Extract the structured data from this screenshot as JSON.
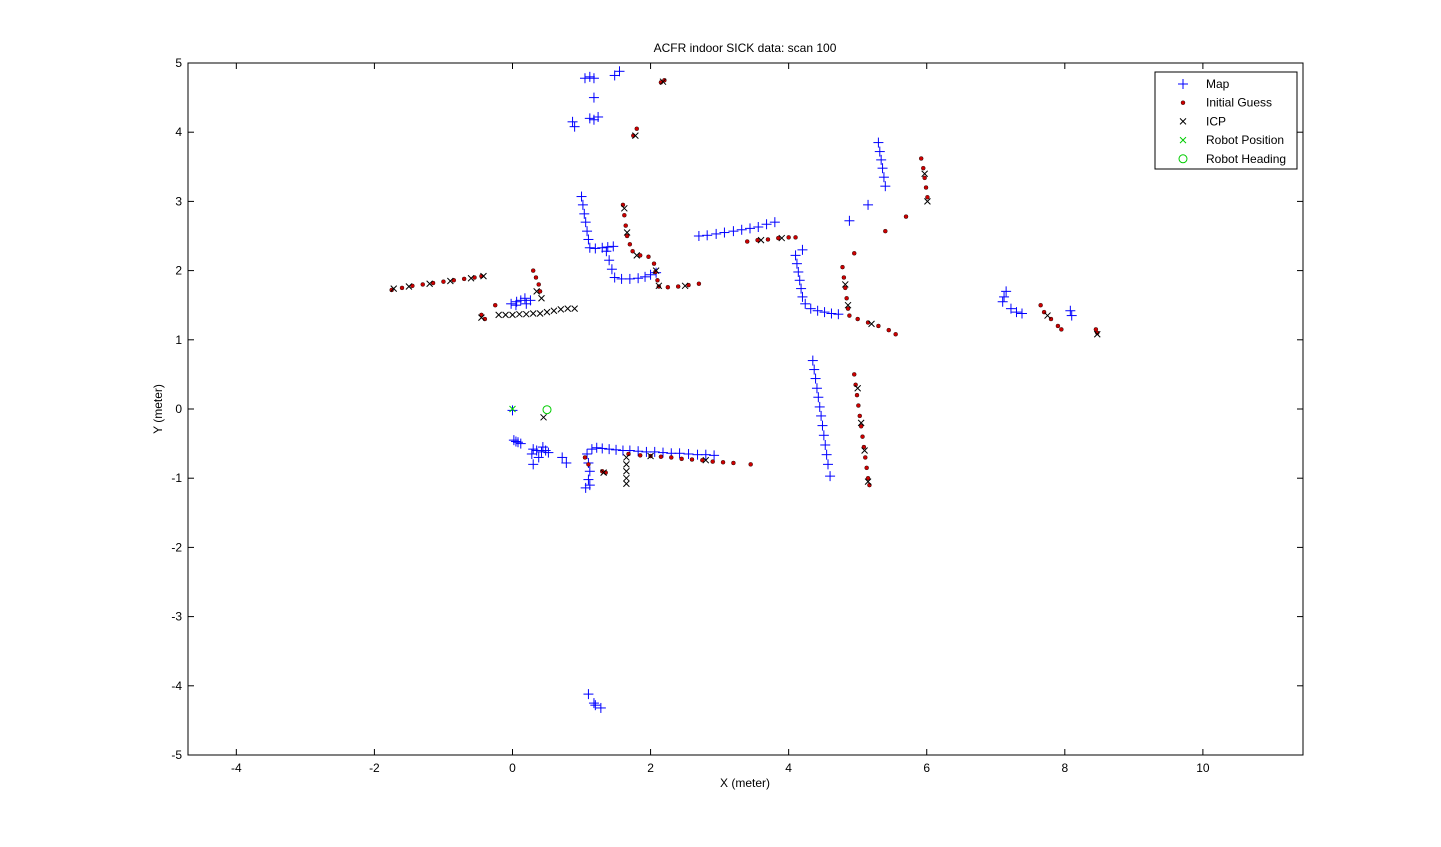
{
  "chart_data": {
    "type": "scatter",
    "title": "ACFR indoor SICK data: scan 100",
    "xlabel": "X (meter)",
    "ylabel": "Y (meter)",
    "xlim": [
      -4.7,
      11.45
    ],
    "ylim": [
      -5,
      5
    ],
    "xticks": [
      -4,
      -2,
      0,
      2,
      4,
      6,
      8,
      10
    ],
    "yticks": [
      -5,
      -4,
      -3,
      -2,
      -1,
      0,
      1,
      2,
      3,
      4,
      5
    ],
    "grid": false,
    "legend_position": "top-right",
    "series": [
      {
        "name": "Map",
        "marker": "plus",
        "color": "#0000ff",
        "points": [
          [
            1.05,
            4.78
          ],
          [
            1.12,
            4.8
          ],
          [
            1.18,
            4.78
          ],
          [
            1.48,
            4.82
          ],
          [
            1.55,
            4.88
          ],
          [
            1.18,
            4.5
          ],
          [
            0.87,
            4.15
          ],
          [
            0.9,
            4.08
          ],
          [
            1.12,
            4.2
          ],
          [
            1.18,
            4.18
          ],
          [
            1.24,
            4.22
          ],
          [
            1.0,
            3.07
          ],
          [
            1.02,
            2.95
          ],
          [
            1.04,
            2.82
          ],
          [
            1.06,
            2.7
          ],
          [
            1.08,
            2.57
          ],
          [
            1.1,
            2.45
          ],
          [
            1.12,
            2.33
          ],
          [
            1.2,
            2.32
          ],
          [
            1.3,
            2.33
          ],
          [
            1.38,
            2.34
          ],
          [
            1.46,
            2.35
          ],
          [
            1.36,
            2.28
          ],
          [
            1.4,
            2.15
          ],
          [
            1.44,
            2.02
          ],
          [
            1.48,
            1.9
          ],
          [
            1.58,
            1.88
          ],
          [
            1.7,
            1.88
          ],
          [
            1.82,
            1.89
          ],
          [
            1.92,
            1.91
          ],
          [
            2.0,
            1.94
          ],
          [
            2.08,
            1.97
          ],
          [
            2.7,
            2.5
          ],
          [
            2.82,
            2.51
          ],
          [
            2.95,
            2.53
          ],
          [
            3.07,
            2.55
          ],
          [
            3.2,
            2.57
          ],
          [
            3.32,
            2.59
          ],
          [
            3.44,
            2.61
          ],
          [
            3.56,
            2.63
          ],
          [
            3.68,
            2.67
          ],
          [
            3.8,
            2.7
          ],
          [
            4.1,
            2.22
          ],
          [
            4.12,
            2.1
          ],
          [
            4.14,
            1.98
          ],
          [
            4.16,
            1.86
          ],
          [
            4.18,
            1.74
          ],
          [
            4.2,
            1.62
          ],
          [
            4.24,
            1.52
          ],
          [
            4.32,
            1.45
          ],
          [
            4.42,
            1.42
          ],
          [
            4.52,
            1.4
          ],
          [
            4.62,
            1.38
          ],
          [
            4.72,
            1.37
          ],
          [
            4.2,
            2.3
          ],
          [
            4.88,
            2.72
          ],
          [
            5.15,
            2.95
          ],
          [
            5.3,
            3.85
          ],
          [
            5.32,
            3.72
          ],
          [
            5.34,
            3.6
          ],
          [
            5.36,
            3.48
          ],
          [
            5.38,
            3.35
          ],
          [
            5.4,
            3.22
          ],
          [
            4.35,
            0.7
          ],
          [
            4.37,
            0.57
          ],
          [
            4.39,
            0.44
          ],
          [
            4.41,
            0.3
          ],
          [
            4.43,
            0.17
          ],
          [
            4.45,
            0.03
          ],
          [
            4.47,
            -0.1
          ],
          [
            4.49,
            -0.24
          ],
          [
            4.51,
            -0.38
          ],
          [
            4.53,
            -0.52
          ],
          [
            4.55,
            -0.66
          ],
          [
            4.57,
            -0.8
          ],
          [
            4.6,
            -0.97
          ],
          [
            7.12,
            1.62
          ],
          [
            7.15,
            1.7
          ],
          [
            7.1,
            1.55
          ],
          [
            7.22,
            1.45
          ],
          [
            7.3,
            1.4
          ],
          [
            7.38,
            1.38
          ],
          [
            8.08,
            1.42
          ],
          [
            8.1,
            1.35
          ],
          [
            -0.02,
            1.52
          ],
          [
            0.06,
            1.55
          ],
          [
            0.12,
            1.57
          ],
          [
            0.18,
            1.6
          ],
          [
            0.26,
            1.57
          ],
          [
            0.05,
            1.5
          ],
          [
            0.2,
            1.52
          ],
          [
            0.0,
            -0.02
          ],
          [
            0.02,
            -0.45
          ],
          [
            0.08,
            -0.48
          ],
          [
            0.12,
            -0.5
          ],
          [
            0.05,
            -0.47
          ],
          [
            0.3,
            -0.58
          ],
          [
            0.35,
            -0.6
          ],
          [
            0.42,
            -0.62
          ],
          [
            0.48,
            -0.6
          ],
          [
            0.38,
            -0.7
          ],
          [
            0.3,
            -0.8
          ],
          [
            0.28,
            -0.65
          ],
          [
            0.44,
            -0.55
          ],
          [
            0.52,
            -0.63
          ],
          [
            0.72,
            -0.7
          ],
          [
            0.78,
            -0.78
          ],
          [
            1.08,
            -0.65
          ],
          [
            1.1,
            -0.78
          ],
          [
            1.12,
            -0.9
          ],
          [
            1.1,
            -1.02
          ],
          [
            1.06,
            -1.14
          ],
          [
            1.12,
            -1.1
          ],
          [
            1.15,
            -0.58
          ],
          [
            1.22,
            -0.56
          ],
          [
            1.3,
            -0.57
          ],
          [
            1.4,
            -0.58
          ],
          [
            1.5,
            -0.59
          ],
          [
            1.6,
            -0.6
          ],
          [
            1.7,
            -0.6
          ],
          [
            1.82,
            -0.61
          ],
          [
            1.94,
            -0.62
          ],
          [
            2.06,
            -0.62
          ],
          [
            2.18,
            -0.63
          ],
          [
            2.3,
            -0.64
          ],
          [
            2.42,
            -0.64
          ],
          [
            2.55,
            -0.65
          ],
          [
            2.68,
            -0.66
          ],
          [
            2.8,
            -0.66
          ],
          [
            2.92,
            -0.67
          ],
          [
            1.1,
            -4.12
          ],
          [
            1.18,
            -4.25
          ],
          [
            1.28,
            -4.32
          ],
          [
            1.2,
            -4.28
          ]
        ]
      },
      {
        "name": "Initial Guess",
        "marker": "dot",
        "color": "#cc0000",
        "points": [
          [
            -1.75,
            1.72
          ],
          [
            -1.6,
            1.75
          ],
          [
            -1.45,
            1.78
          ],
          [
            -1.3,
            1.8
          ],
          [
            -1.15,
            1.82
          ],
          [
            -1.0,
            1.84
          ],
          [
            -0.85,
            1.86
          ],
          [
            -0.7,
            1.88
          ],
          [
            -0.55,
            1.9
          ],
          [
            -0.45,
            1.92
          ],
          [
            -0.45,
            1.36
          ],
          [
            -0.4,
            1.3
          ],
          [
            -0.25,
            1.5
          ],
          [
            0.3,
            2.0
          ],
          [
            0.34,
            1.9
          ],
          [
            0.38,
            1.8
          ],
          [
            0.4,
            1.7
          ],
          [
            1.6,
            2.95
          ],
          [
            1.62,
            2.8
          ],
          [
            1.64,
            2.65
          ],
          [
            1.66,
            2.5
          ],
          [
            1.7,
            2.38
          ],
          [
            1.74,
            2.28
          ],
          [
            1.85,
            2.22
          ],
          [
            1.97,
            2.2
          ],
          [
            2.05,
            2.1
          ],
          [
            2.07,
            1.98
          ],
          [
            2.1,
            1.86
          ],
          [
            2.12,
            1.77
          ],
          [
            2.25,
            1.76
          ],
          [
            2.4,
            1.77
          ],
          [
            2.55,
            1.79
          ],
          [
            2.7,
            1.81
          ],
          [
            1.8,
            4.05
          ],
          [
            1.75,
            3.95
          ],
          [
            2.15,
            4.72
          ],
          [
            2.2,
            4.75
          ],
          [
            3.4,
            2.42
          ],
          [
            3.55,
            2.44
          ],
          [
            3.7,
            2.45
          ],
          [
            3.85,
            2.47
          ],
          [
            4.0,
            2.48
          ],
          [
            4.1,
            2.48
          ],
          [
            4.78,
            2.05
          ],
          [
            4.8,
            1.9
          ],
          [
            4.82,
            1.75
          ],
          [
            4.84,
            1.6
          ],
          [
            4.86,
            1.45
          ],
          [
            4.88,
            1.35
          ],
          [
            5.0,
            1.3
          ],
          [
            5.15,
            1.25
          ],
          [
            5.3,
            1.2
          ],
          [
            5.45,
            1.14
          ],
          [
            5.55,
            1.08
          ],
          [
            4.95,
            2.25
          ],
          [
            5.4,
            2.57
          ],
          [
            5.7,
            2.78
          ],
          [
            5.92,
            3.62
          ],
          [
            5.95,
            3.48
          ],
          [
            5.97,
            3.34
          ],
          [
            5.99,
            3.2
          ],
          [
            6.01,
            3.06
          ],
          [
            4.95,
            0.5
          ],
          [
            4.97,
            0.35
          ],
          [
            4.99,
            0.2
          ],
          [
            5.01,
            0.05
          ],
          [
            5.03,
            -0.1
          ],
          [
            5.05,
            -0.25
          ],
          [
            5.07,
            -0.4
          ],
          [
            5.09,
            -0.55
          ],
          [
            5.11,
            -0.7
          ],
          [
            5.13,
            -0.85
          ],
          [
            5.15,
            -1.0
          ],
          [
            5.17,
            -1.1
          ],
          [
            7.65,
            1.5
          ],
          [
            7.7,
            1.4
          ],
          [
            7.8,
            1.3
          ],
          [
            7.9,
            1.2
          ],
          [
            7.95,
            1.15
          ],
          [
            8.45,
            1.15
          ],
          [
            8.47,
            1.1
          ],
          [
            1.68,
            -0.65
          ],
          [
            1.85,
            -0.67
          ],
          [
            2.0,
            -0.68
          ],
          [
            2.15,
            -0.69
          ],
          [
            2.3,
            -0.7
          ],
          [
            2.45,
            -0.72
          ],
          [
            2.6,
            -0.73
          ],
          [
            2.75,
            -0.74
          ],
          [
            2.9,
            -0.76
          ],
          [
            3.05,
            -0.77
          ],
          [
            3.2,
            -0.78
          ],
          [
            3.45,
            -0.8
          ],
          [
            1.3,
            -0.9
          ],
          [
            1.35,
            -0.92
          ],
          [
            1.05,
            -0.7
          ],
          [
            1.1,
            -0.8
          ]
        ]
      },
      {
        "name": "ICP",
        "marker": "x",
        "color": "#000000",
        "points": [
          [
            -1.72,
            1.74
          ],
          [
            -1.5,
            1.77
          ],
          [
            -1.2,
            1.81
          ],
          [
            -0.9,
            1.85
          ],
          [
            -0.6,
            1.89
          ],
          [
            -0.42,
            1.92
          ],
          [
            -0.45,
            1.32
          ],
          [
            -0.2,
            1.36
          ],
          [
            -0.1,
            1.36
          ],
          [
            0.0,
            1.36
          ],
          [
            0.1,
            1.37
          ],
          [
            0.2,
            1.37
          ],
          [
            0.3,
            1.38
          ],
          [
            0.4,
            1.38
          ],
          [
            0.5,
            1.4
          ],
          [
            0.6,
            1.42
          ],
          [
            0.7,
            1.44
          ],
          [
            0.8,
            1.45
          ],
          [
            0.9,
            1.45
          ],
          [
            0.35,
            1.7
          ],
          [
            0.42,
            1.6
          ],
          [
            1.62,
            2.9
          ],
          [
            1.66,
            2.55
          ],
          [
            1.8,
            2.22
          ],
          [
            2.08,
            2.0
          ],
          [
            2.12,
            1.78
          ],
          [
            2.5,
            1.78
          ],
          [
            1.78,
            3.95
          ],
          [
            2.18,
            4.73
          ],
          [
            3.6,
            2.44
          ],
          [
            3.9,
            2.47
          ],
          [
            4.82,
            1.8
          ],
          [
            4.86,
            1.5
          ],
          [
            5.2,
            1.23
          ],
          [
            5.97,
            3.4
          ],
          [
            6.01,
            3.0
          ],
          [
            5.0,
            0.3
          ],
          [
            5.05,
            -0.2
          ],
          [
            5.1,
            -0.6
          ],
          [
            5.15,
            -1.05
          ],
          [
            7.75,
            1.35
          ],
          [
            8.47,
            1.08
          ],
          [
            1.65,
            -0.7
          ],
          [
            1.65,
            -0.8
          ],
          [
            1.65,
            -0.9
          ],
          [
            1.65,
            -1.0
          ],
          [
            1.65,
            -1.08
          ],
          [
            2.0,
            -0.68
          ],
          [
            2.8,
            -0.74
          ],
          [
            0.45,
            -0.12
          ],
          [
            1.32,
            -0.92
          ]
        ]
      },
      {
        "name": "Robot Position",
        "marker": "x",
        "color": "#00cc00",
        "points": [
          [
            0.0,
            0.0
          ]
        ]
      },
      {
        "name": "Robot Heading",
        "marker": "circle",
        "color": "#00cc00",
        "points": [
          [
            0.5,
            -0.01
          ]
        ]
      }
    ]
  }
}
